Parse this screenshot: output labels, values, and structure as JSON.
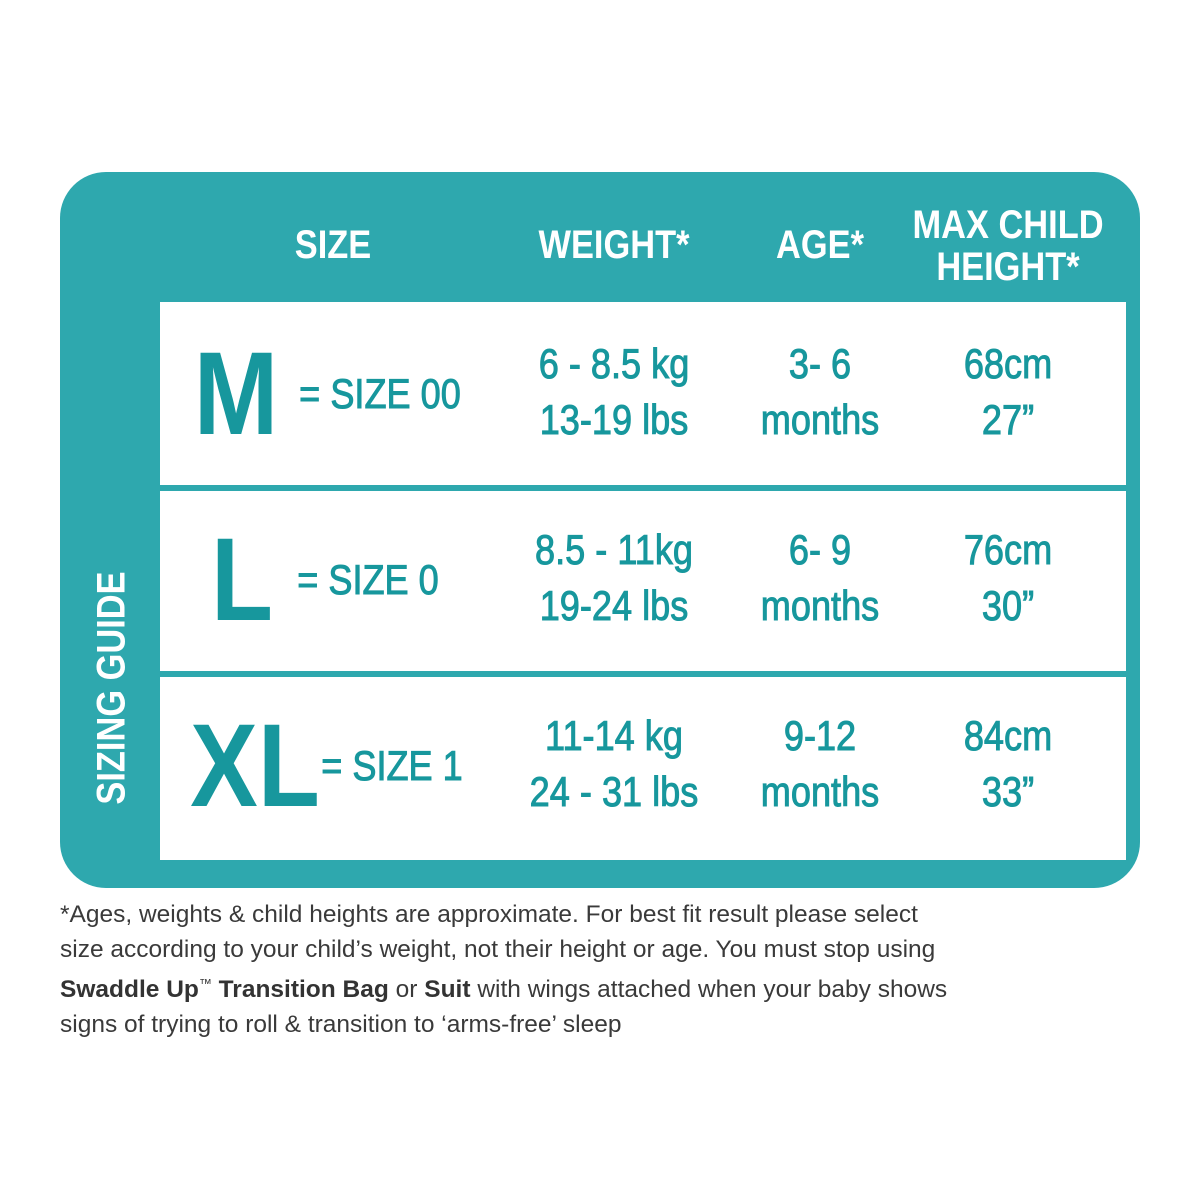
{
  "side_label": "SIZING GUIDE",
  "header": [
    "SIZE",
    "WEIGHT*",
    "AGE*",
    [
      "MAX CHILD",
      "HEIGHT*"
    ]
  ],
  "rows": [
    {
      "letter": "M",
      "size": "= SIZE 00",
      "weight": [
        "6 - 8.5 kg",
        "13-19 lbs"
      ],
      "age": [
        "3- 6",
        "months"
      ],
      "height": [
        "68cm",
        "27”"
      ]
    },
    {
      "letter": "L",
      "size": "= SIZE 0",
      "weight": [
        "8.5 - 11kg",
        "19-24 lbs"
      ],
      "age": [
        "6- 9",
        "months"
      ],
      "height": [
        "76cm",
        "30”"
      ]
    },
    {
      "letter": "XL",
      "size": "= SIZE 1",
      "weight": [
        "11-14 kg",
        "24 - 31 lbs"
      ],
      "age": [
        "9-12",
        "months"
      ],
      "height": [
        "84cm",
        "33”"
      ]
    }
  ],
  "footnote": [
    [
      {
        "text": "*Ages, weights & child heights are approximate. For best fit result please select"
      }
    ],
    [
      {
        "text": "size according to your child’s weight, not their height or age. You must stop using"
      }
    ],
    [
      {
        "text": "Swaddle Up",
        "style": "bold"
      },
      {
        "text": "™",
        "style": "sup"
      },
      {
        "text": " Transition Bag",
        "style": "bold"
      },
      {
        "text": " or "
      },
      {
        "text": "Suit",
        "style": "bold"
      },
      {
        "text": " with wings attached when your baby shows"
      }
    ],
    [
      {
        "text": "signs of trying to roll & transition to ‘arms-free’ sleep"
      }
    ]
  ]
}
